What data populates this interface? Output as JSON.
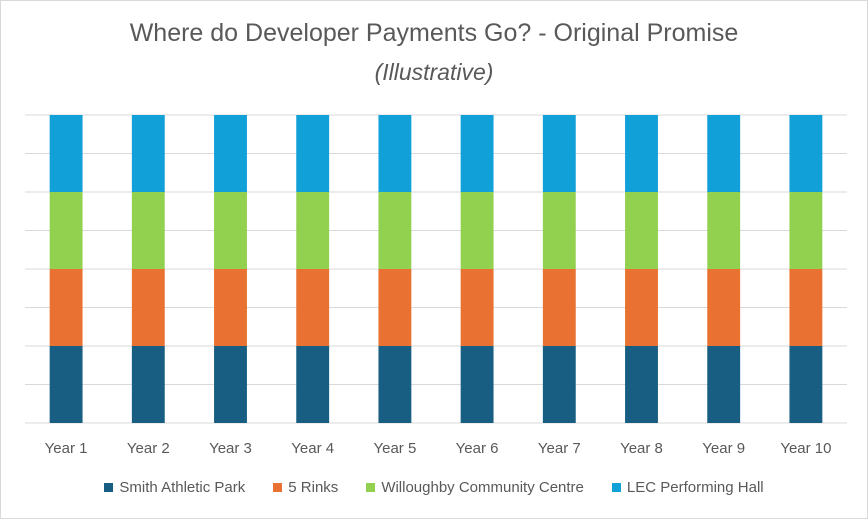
{
  "chart_data": {
    "type": "bar",
    "stacked": true,
    "title": "Where do Developer Payments Go? - Original Promise",
    "subtitle": "(Illustrative)",
    "categories": [
      "Year 1",
      "Year 2",
      "Year 3",
      "Year 4",
      "Year 5",
      "Year 6",
      "Year 7",
      "Year 8",
      "Year 9",
      "Year 10"
    ],
    "series": [
      {
        "name": "Smith Athletic Park",
        "color": "#175e82",
        "values": [
          1,
          1,
          1,
          1,
          1,
          1,
          1,
          1,
          1,
          1
        ]
      },
      {
        "name": "5 Rinks",
        "color": "#e97132",
        "values": [
          1,
          1,
          1,
          1,
          1,
          1,
          1,
          1,
          1,
          1
        ]
      },
      {
        "name": "Willoughby Community Centre",
        "color": "#92d050",
        "values": [
          1,
          1,
          1,
          1,
          1,
          1,
          1,
          1,
          1,
          1
        ]
      },
      {
        "name": "LEC Performing Hall",
        "color": "#12a0d8",
        "values": [
          1,
          1,
          1,
          1,
          1,
          1,
          1,
          1,
          1,
          1
        ]
      }
    ],
    "ylim": [
      0,
      4
    ],
    "grid": true,
    "legend": "bottom",
    "xlabel": "",
    "ylabel": ""
  }
}
